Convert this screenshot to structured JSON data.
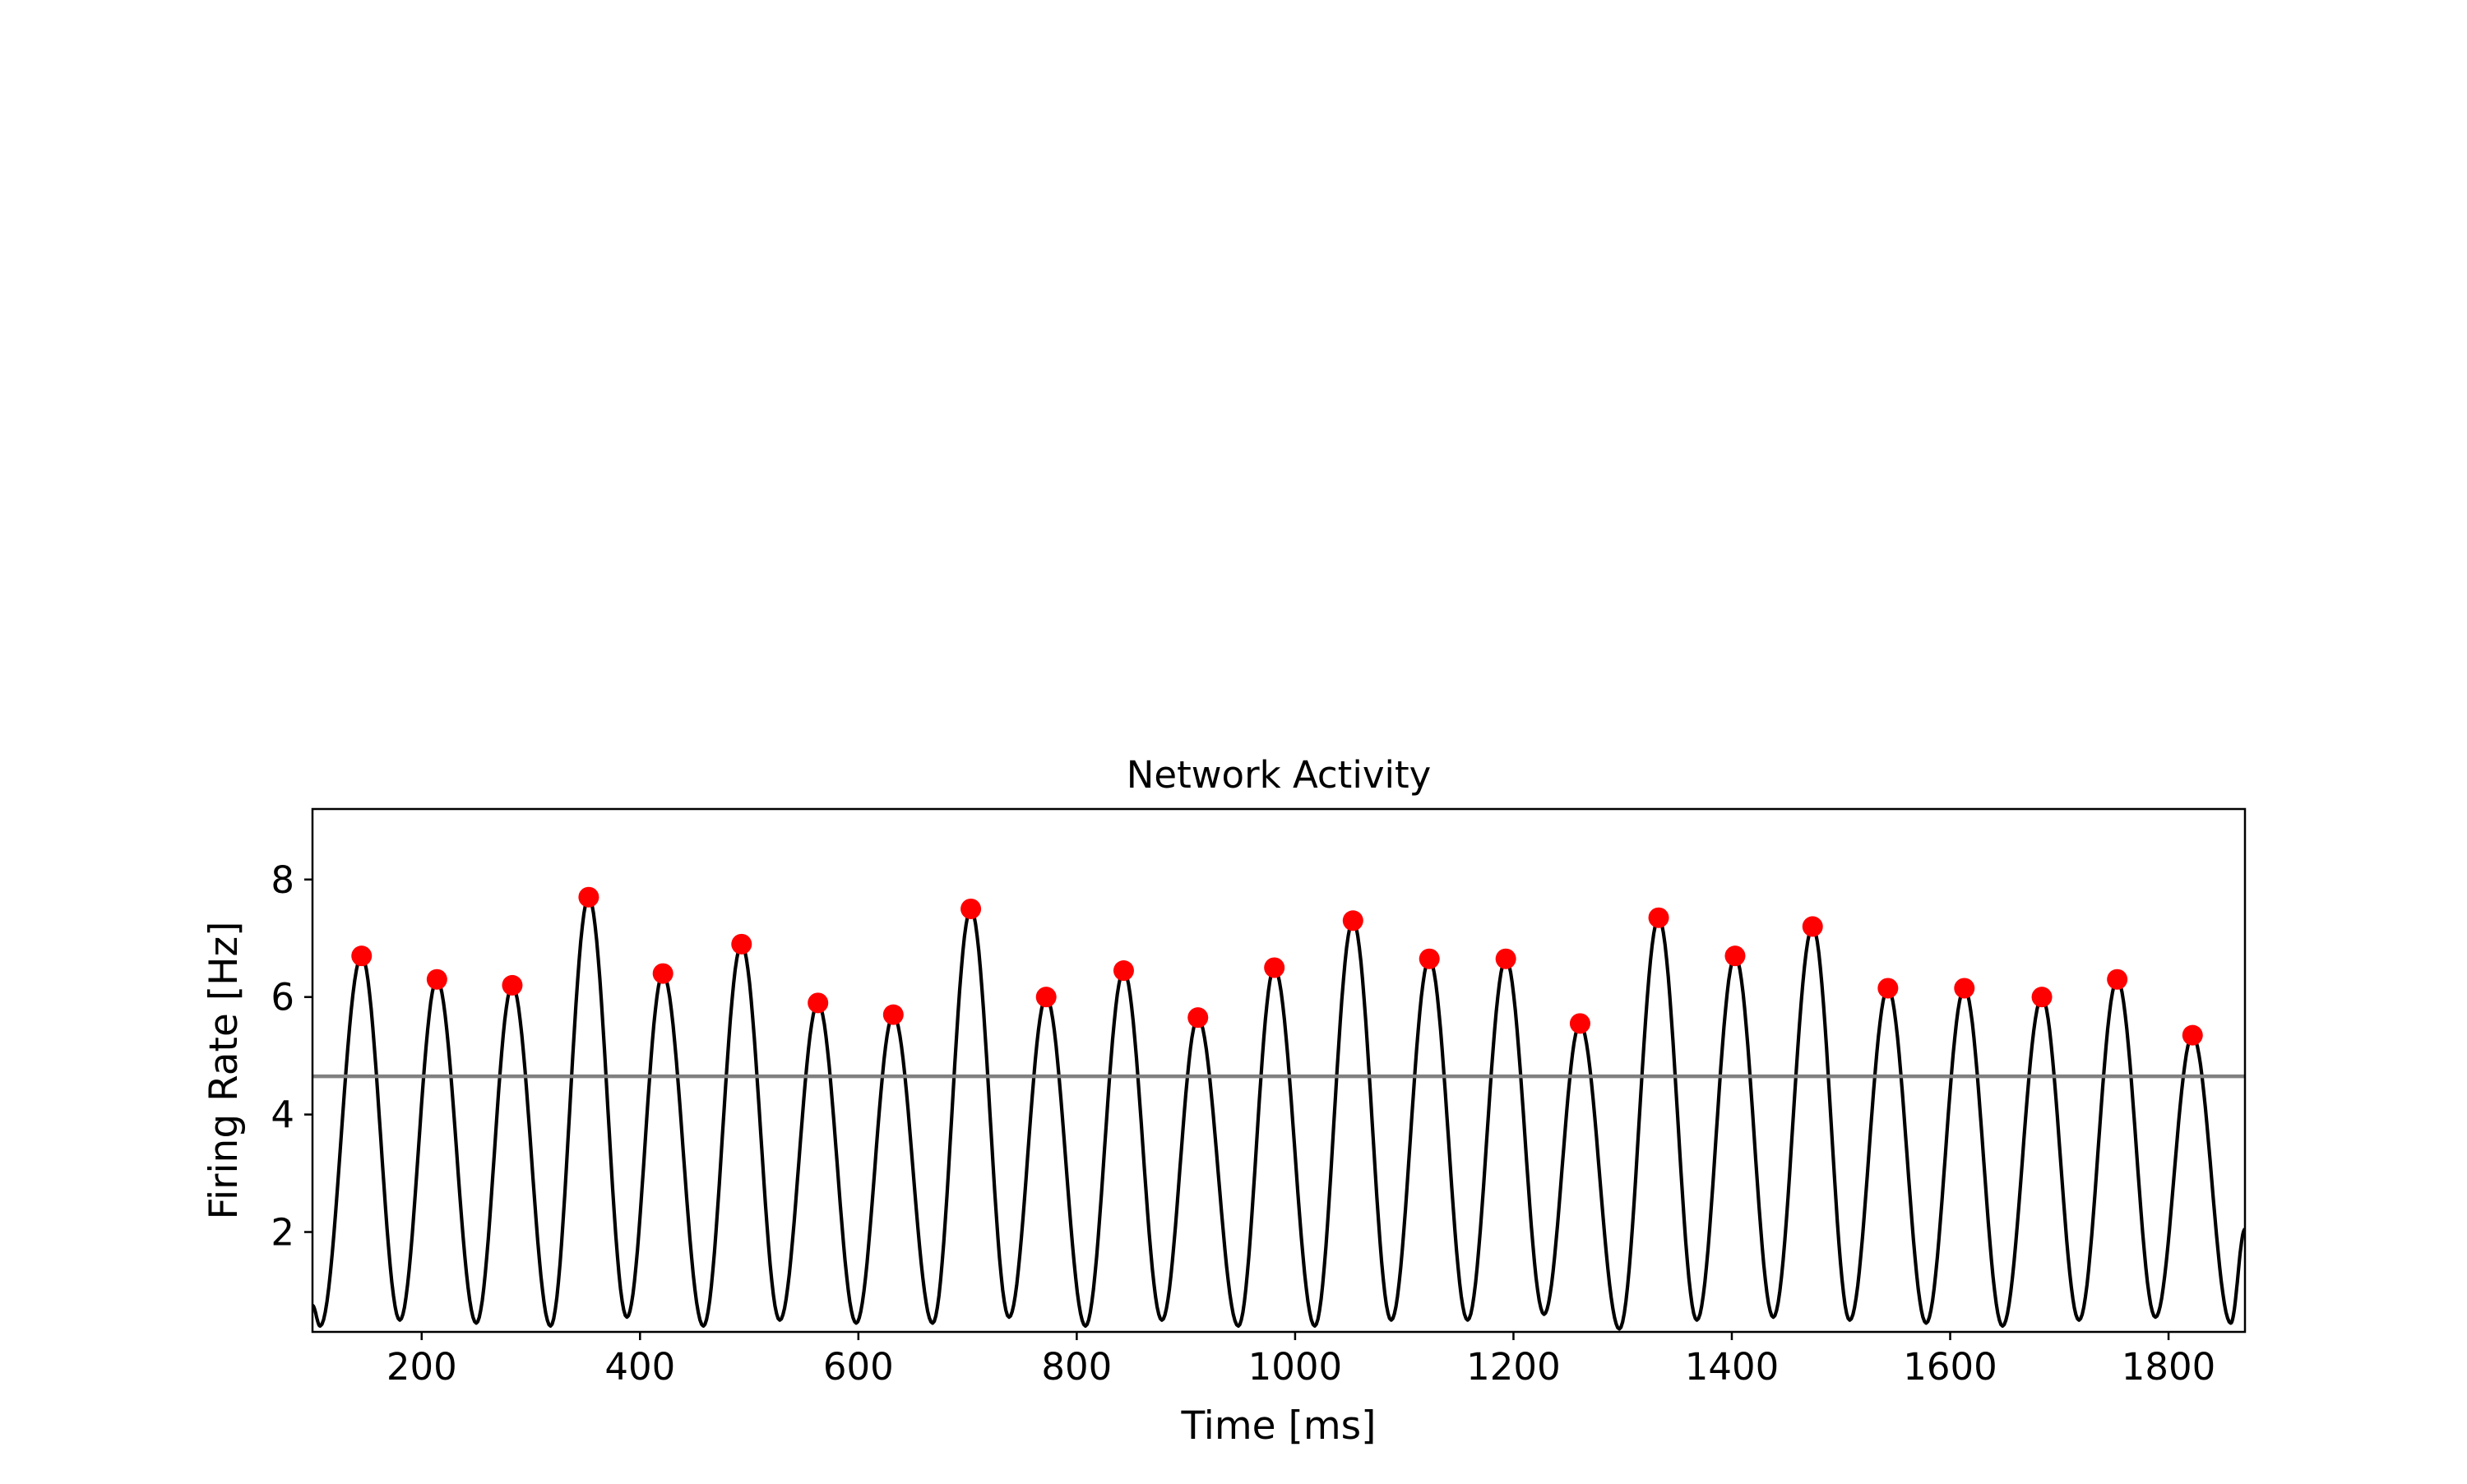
{
  "chart_data": {
    "type": "line",
    "title": "Network Activity",
    "xlabel": "Time [ms]",
    "ylabel": "Firing Rate [Hz]",
    "xlim": [
      100,
      1870
    ],
    "ylim": [
      0.3,
      9.2
    ],
    "xticks": [
      200,
      400,
      600,
      800,
      1000,
      1200,
      1400,
      1600,
      1800
    ],
    "yticks": [
      2,
      4,
      6,
      8
    ],
    "grid": false,
    "threshold": 4.65,
    "series": [
      {
        "kind": "line",
        "color": "#000000",
        "peaks": [
          {
            "x": 145,
            "y": 6.7
          },
          {
            "x": 214,
            "y": 6.3
          },
          {
            "x": 283,
            "y": 6.2
          },
          {
            "x": 353,
            "y": 7.7
          },
          {
            "x": 421,
            "y": 6.4
          },
          {
            "x": 493,
            "y": 6.9
          },
          {
            "x": 563,
            "y": 5.9
          },
          {
            "x": 632,
            "y": 5.7
          },
          {
            "x": 703,
            "y": 7.5
          },
          {
            "x": 772,
            "y": 6.0
          },
          {
            "x": 843,
            "y": 6.45
          },
          {
            "x": 911,
            "y": 5.65
          },
          {
            "x": 981,
            "y": 6.5
          },
          {
            "x": 1053,
            "y": 7.3
          },
          {
            "x": 1123,
            "y": 6.65
          },
          {
            "x": 1193,
            "y": 6.65
          },
          {
            "x": 1261,
            "y": 5.55
          },
          {
            "x": 1333,
            "y": 7.35
          },
          {
            "x": 1403,
            "y": 6.7
          },
          {
            "x": 1474,
            "y": 7.2
          },
          {
            "x": 1543,
            "y": 6.15
          },
          {
            "x": 1613,
            "y": 6.15
          },
          {
            "x": 1684,
            "y": 6.0
          },
          {
            "x": 1753,
            "y": 6.3
          },
          {
            "x": 1822,
            "y": 5.35
          }
        ],
        "troughs": [
          {
            "x": 100,
            "y": 0.75
          },
          {
            "x": 107,
            "y": 0.4
          },
          {
            "x": 180,
            "y": 0.5
          },
          {
            "x": 250,
            "y": 0.45
          },
          {
            "x": 318,
            "y": 0.4
          },
          {
            "x": 388,
            "y": 0.55
          },
          {
            "x": 458,
            "y": 0.4
          },
          {
            "x": 528,
            "y": 0.5
          },
          {
            "x": 598,
            "y": 0.45
          },
          {
            "x": 668,
            "y": 0.45
          },
          {
            "x": 738,
            "y": 0.55
          },
          {
            "x": 808,
            "y": 0.4
          },
          {
            "x": 878,
            "y": 0.5
          },
          {
            "x": 948,
            "y": 0.4
          },
          {
            "x": 1018,
            "y": 0.4
          },
          {
            "x": 1088,
            "y": 0.5
          },
          {
            "x": 1158,
            "y": 0.5
          },
          {
            "x": 1228,
            "y": 0.6
          },
          {
            "x": 1297,
            "y": 0.35
          },
          {
            "x": 1368,
            "y": 0.5
          },
          {
            "x": 1438,
            "y": 0.55
          },
          {
            "x": 1508,
            "y": 0.5
          },
          {
            "x": 1578,
            "y": 0.45
          },
          {
            "x": 1648,
            "y": 0.4
          },
          {
            "x": 1718,
            "y": 0.5
          },
          {
            "x": 1788,
            "y": 0.55
          },
          {
            "x": 1857,
            "y": 0.45
          },
          {
            "x": 1870,
            "y": 2.05
          }
        ]
      },
      {
        "kind": "markers",
        "color": "#ff0000",
        "source": "peaks"
      }
    ],
    "threshold_color": "#808080"
  }
}
